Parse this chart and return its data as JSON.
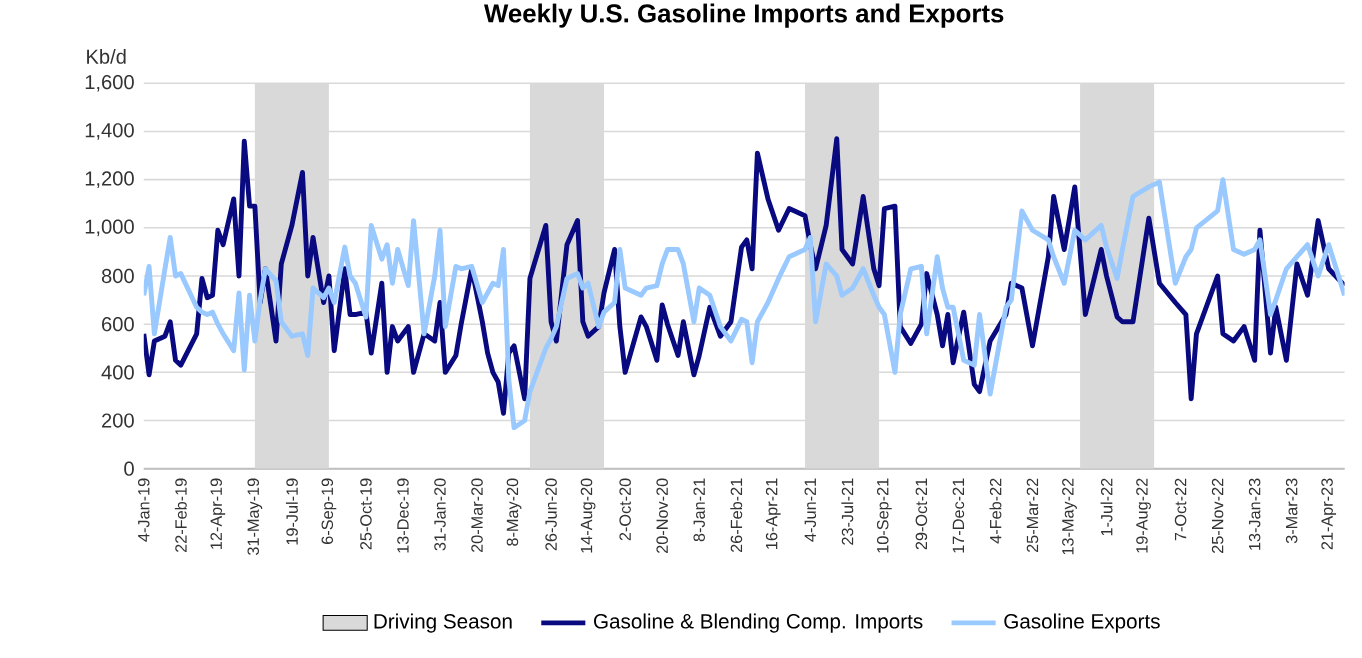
{
  "chart_data": {
    "type": "line",
    "title": "Weekly U.S. Gasoline Imports and Exports",
    "ylabel": "Kb/d",
    "x": [
      "2019-01-04",
      "2019-01-11",
      "2019-01-18",
      "2019-02-01",
      "2019-02-08",
      "2019-02-15",
      "2019-02-22",
      "2019-03-15",
      "2019-03-22",
      "2019-03-29",
      "2019-04-05",
      "2019-04-12",
      "2019-04-19",
      "2019-05-03",
      "2019-05-10",
      "2019-05-17",
      "2019-05-24",
      "2019-05-31",
      "2019-06-07",
      "2019-06-14",
      "2019-06-28",
      "2019-07-05",
      "2019-07-19",
      "2019-08-02",
      "2019-08-09",
      "2019-08-16",
      "2019-08-30",
      "2019-09-06",
      "2019-09-13",
      "2019-09-27",
      "2019-10-04",
      "2019-10-11",
      "2019-10-25",
      "2019-11-01",
      "2019-11-15",
      "2019-11-22",
      "2019-11-29",
      "2019-12-06",
      "2019-12-20",
      "2019-12-27",
      "2020-01-10",
      "2020-01-24",
      "2020-01-31",
      "2020-02-07",
      "2020-02-21",
      "2020-02-28",
      "2020-03-13",
      "2020-03-27",
      "2020-04-03",
      "2020-04-10",
      "2020-04-17",
      "2020-04-24",
      "2020-05-01",
      "2020-05-08",
      "2020-05-22",
      "2020-05-29",
      "2020-06-19",
      "2020-06-26",
      "2020-07-03",
      "2020-07-17",
      "2020-07-31",
      "2020-08-07",
      "2020-08-14",
      "2020-08-28",
      "2020-09-04",
      "2020-09-18",
      "2020-09-25",
      "2020-10-02",
      "2020-10-23",
      "2020-10-30",
      "2020-11-13",
      "2020-11-20",
      "2020-11-27",
      "2020-12-11",
      "2020-12-18",
      "2021-01-01",
      "2021-01-08",
      "2021-01-22",
      "2021-02-05",
      "2021-02-19",
      "2021-03-05",
      "2021-03-12",
      "2021-03-19",
      "2021-03-26",
      "2021-04-09",
      "2021-04-23",
      "2021-05-07",
      "2021-05-28",
      "2021-06-04",
      "2021-06-11",
      "2021-06-25",
      "2021-07-09",
      "2021-07-16",
      "2021-07-30",
      "2021-08-13",
      "2021-08-27",
      "2021-09-03",
      "2021-09-10",
      "2021-09-24",
      "2021-10-01",
      "2021-10-15",
      "2021-10-29",
      "2021-11-05",
      "2021-11-19",
      "2021-11-26",
      "2021-12-03",
      "2021-12-10",
      "2021-12-24",
      "2022-01-07",
      "2022-01-14",
      "2022-01-28",
      "2022-02-18",
      "2022-02-25",
      "2022-03-11",
      "2022-03-25",
      "2022-04-15",
      "2022-04-22",
      "2022-05-06",
      "2022-05-20",
      "2022-06-03",
      "2022-06-24",
      "2022-07-01",
      "2022-07-15",
      "2022-07-22",
      "2022-08-05",
      "2022-08-26",
      "2022-09-09",
      "2022-09-30",
      "2022-10-14",
      "2022-10-21",
      "2022-10-28",
      "2022-11-25",
      "2022-12-02",
      "2022-12-16",
      "2022-12-30",
      "2023-01-13",
      "2023-01-20",
      "2023-02-03",
      "2023-02-10",
      "2023-02-24",
      "2023-03-10",
      "2023-03-24",
      "2023-04-07",
      "2023-04-21",
      "2023-05-12"
    ],
    "series": [
      {
        "name": "Gasoline  & Blending Comp. Imports",
        "color": "#0a0a80",
        "values": [
          560,
          390,
          530,
          550,
          610,
          450,
          430,
          560,
          790,
          710,
          720,
          990,
          930,
          1120,
          800,
          1360,
          1090,
          1090,
          690,
          830,
          530,
          850,
          1010,
          1230,
          800,
          960,
          690,
          800,
          490,
          830,
          640,
          640,
          650,
          480,
          770,
          400,
          590,
          530,
          590,
          400,
          560,
          530,
          690,
          400,
          470,
          600,
          830,
          610,
          480,
          400,
          360,
          230,
          480,
          510,
          290,
          790,
          1010,
          610,
          530,
          930,
          1030,
          610,
          550,
          590,
          730,
          910,
          590,
          400,
          630,
          590,
          450,
          680,
          600,
          470,
          610,
          390,
          470,
          670,
          550,
          610,
          920,
          950,
          830,
          1310,
          1120,
          990,
          1080,
          1050,
          930,
          830,
          1010,
          1370,
          910,
          850,
          1130,
          830,
          760,
          1080,
          1090,
          590,
          520,
          600,
          810,
          640,
          510,
          640,
          440,
          650,
          350,
          320,
          530,
          640,
          770,
          750,
          510,
          880,
          1130,
          910,
          1170,
          640,
          910,
          800,
          630,
          610,
          610,
          1040,
          770,
          690,
          640,
          290,
          560,
          800,
          560,
          530,
          590,
          450,
          990,
          480,
          670,
          450,
          850,
          720,
          1030,
          830,
          760
        ]
      },
      {
        "name": "Gasoline Exports",
        "color": "#99c9ff",
        "values": [
          720,
          840,
          560,
          830,
          960,
          800,
          810,
          670,
          650,
          640,
          650,
          600,
          560,
          490,
          730,
          410,
          720,
          530,
          700,
          830,
          780,
          610,
          550,
          560,
          470,
          750,
          710,
          750,
          690,
          920,
          800,
          770,
          630,
          1010,
          870,
          930,
          770,
          910,
          760,
          1030,
          560,
          800,
          990,
          590,
          840,
          830,
          840,
          690,
          730,
          770,
          760,
          910,
          370,
          170,
          200,
          320,
          500,
          540,
          590,
          790,
          810,
          750,
          770,
          590,
          650,
          690,
          910,
          750,
          720,
          750,
          760,
          850,
          910,
          910,
          850,
          610,
          750,
          720,
          590,
          530,
          620,
          610,
          440,
          610,
          690,
          790,
          880,
          910,
          960,
          610,
          850,
          800,
          720,
          750,
          830,
          720,
          670,
          640,
          400,
          640,
          830,
          840,
          560,
          880,
          750,
          670,
          670,
          450,
          430,
          640,
          310,
          670,
          700,
          1070,
          990,
          950,
          880,
          770,
          990,
          950,
          1010,
          920,
          790,
          910,
          1130,
          1170,
          1190,
          770,
          880,
          910,
          1000,
          1070,
          1200,
          910,
          890,
          910,
          950,
          640,
          700,
          830,
          880,
          930,
          800,
          930,
          720
        ]
      }
    ],
    "xlim": [
      "2019-01-04",
      "2023-05-12"
    ],
    "xticks": [
      {
        "value": "2019-01-04",
        "label": "4-Jan-19"
      },
      {
        "value": "2019-02-22",
        "label": "22-Feb-19"
      },
      {
        "value": "2019-04-12",
        "label": "12-Apr-19"
      },
      {
        "value": "2019-05-31",
        "label": "31-May-19"
      },
      {
        "value": "2019-07-19",
        "label": "19-Jul-19"
      },
      {
        "value": "2019-09-06",
        "label": "6-Sep-19"
      },
      {
        "value": "2019-10-25",
        "label": "25-Oct-19"
      },
      {
        "value": "2019-12-13",
        "label": "13-Dec-19"
      },
      {
        "value": "2020-01-31",
        "label": "31-Jan-20"
      },
      {
        "value": "2020-03-20",
        "label": "20-Mar-20"
      },
      {
        "value": "2020-05-08",
        "label": "8-May-20"
      },
      {
        "value": "2020-06-26",
        "label": "26-Jun-20"
      },
      {
        "value": "2020-08-14",
        "label": "14-Aug-20"
      },
      {
        "value": "2020-10-02",
        "label": "2-Oct-20"
      },
      {
        "value": "2020-11-20",
        "label": "20-Nov-20"
      },
      {
        "value": "2021-01-08",
        "label": "8-Jan-21"
      },
      {
        "value": "2021-02-26",
        "label": "26-Feb-21"
      },
      {
        "value": "2021-04-16",
        "label": "16-Apr-21"
      },
      {
        "value": "2021-06-04",
        "label": "4-Jun-21"
      },
      {
        "value": "2021-07-23",
        "label": "23-Jul-21"
      },
      {
        "value": "2021-09-10",
        "label": "10-Sep-21"
      },
      {
        "value": "2021-10-29",
        "label": "29-Oct-21"
      },
      {
        "value": "2021-12-17",
        "label": "17-Dec-21"
      },
      {
        "value": "2022-02-04",
        "label": "4-Feb-22"
      },
      {
        "value": "2022-03-25",
        "label": "25-Mar-22"
      },
      {
        "value": "2022-05-13",
        "label": "13-May-22"
      },
      {
        "value": "2022-07-01",
        "label": "1-Jul-22"
      },
      {
        "value": "2022-08-19",
        "label": "19-Aug-22"
      },
      {
        "value": "2022-10-07",
        "label": "7-Oct-22"
      },
      {
        "value": "2022-11-25",
        "label": "25-Nov-22"
      },
      {
        "value": "2023-01-13",
        "label": "13-Jan-23"
      },
      {
        "value": "2023-03-03",
        "label": "3-Mar-23"
      },
      {
        "value": "2023-04-21",
        "label": "21-Apr-23"
      }
    ],
    "ylim": [
      0,
      1600
    ],
    "yticks": [
      0,
      200,
      400,
      600,
      800,
      {
        "value": 1000,
        "label": "1,000"
      },
      {
        "value": 1200,
        "label": "1,200"
      },
      {
        "value": 1400,
        "label": "1,400"
      },
      {
        "value": 1600,
        "label": "1,600"
      }
    ],
    "bands": [
      {
        "axis": "x",
        "from": "2019-05-31",
        "to": "2019-09-06",
        "label": "Driving Season",
        "color": "#d9d9d9"
      },
      {
        "axis": "x",
        "from": "2020-05-29",
        "to": "2020-09-04",
        "color": "#d9d9d9"
      },
      {
        "axis": "x",
        "from": "2021-05-28",
        "to": "2021-09-03",
        "color": "#d9d9d9"
      },
      {
        "axis": "x",
        "from": "2022-05-27",
        "to": "2022-09-02",
        "color": "#d9d9d9"
      }
    ],
    "grid": "y",
    "legend": "bottom"
  }
}
